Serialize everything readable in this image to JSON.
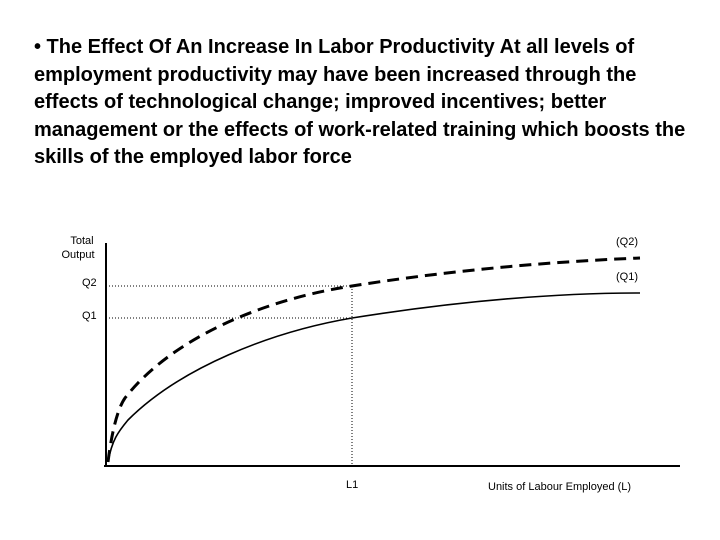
{
  "slide": {
    "text": "• The Effect Of An Increase In Labor Productivity At all levels of employment productivity may have been increased through the effects of technological change; improved incentives; better management or  the effects of work-related training which boosts the skills of the employed labor force"
  },
  "diagram": {
    "y_axis_label_line1": "Total",
    "y_axis_label_line2": "Output",
    "x_axis_label": "Units of Labour Employed (L)",
    "tick_q2": "Q2",
    "tick_q1": "Q1",
    "tick_l1": "L1",
    "curve_q2_label": "(Q2)",
    "curve_q1_label": "(Q1)"
  }
}
